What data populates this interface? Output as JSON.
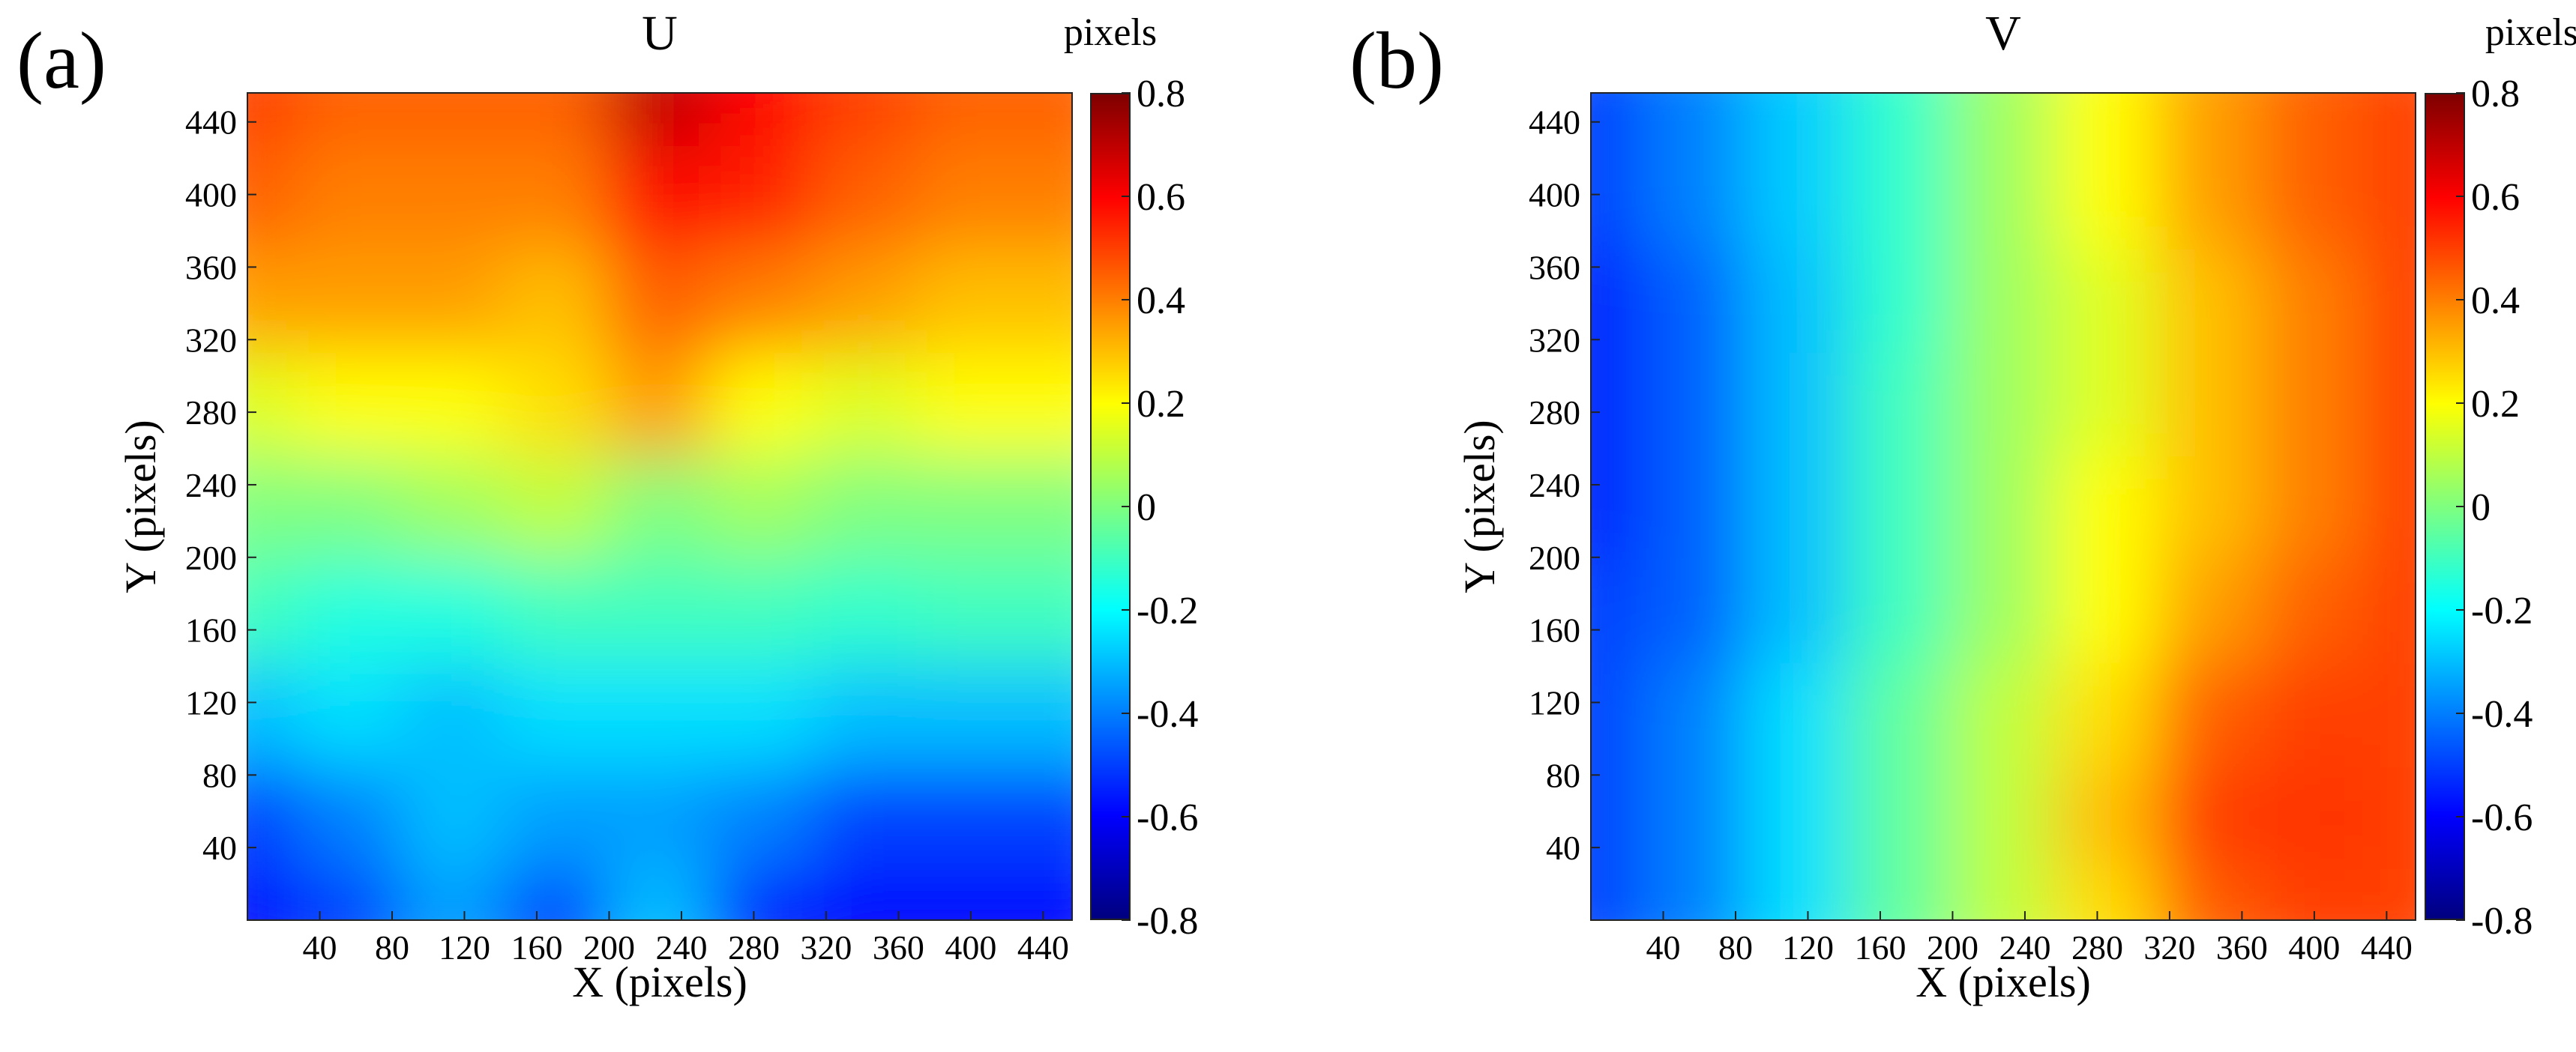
{
  "chart_data": [
    {
      "type": "heatmap",
      "panel_label": "(a)",
      "title": "U",
      "xlabel": "X (pixels)",
      "ylabel": "Y (pixels)",
      "xlim": [
        0,
        456
      ],
      "ylim": [
        0,
        456
      ],
      "xticks": [
        40,
        80,
        120,
        160,
        200,
        240,
        280,
        320,
        360,
        400,
        440
      ],
      "yticks": [
        40,
        80,
        120,
        160,
        200,
        240,
        280,
        320,
        360,
        400,
        440
      ],
      "colorbar": {
        "label": "pixels",
        "range": [
          -0.8,
          0.8
        ],
        "ticks": [
          0.8,
          0.6,
          0.4,
          0.2,
          0,
          -0.2,
          -0.4,
          -0.6,
          -0.8
        ],
        "tick_labels": [
          "0.8",
          "0.6",
          "0.4",
          "0.2",
          "0",
          "-0.2",
          "-0.4",
          "-0.6",
          "-0.8"
        ],
        "colormap": "jet"
      },
      "grid_x": [
        0,
        57,
        114,
        171,
        228,
        285,
        342,
        399,
        456
      ],
      "grid_y": [
        0,
        57,
        114,
        171,
        228,
        285,
        342,
        399,
        456
      ],
      "values": [
        [
          -0.6,
          -0.5,
          -0.35,
          -0.5,
          -0.3,
          -0.55,
          -0.6,
          -0.6,
          -0.6
        ],
        [
          -0.5,
          -0.4,
          -0.3,
          -0.35,
          -0.35,
          -0.4,
          -0.5,
          -0.5,
          -0.5
        ],
        [
          -0.3,
          -0.25,
          -0.3,
          -0.25,
          -0.25,
          -0.25,
          -0.3,
          -0.3,
          -0.3
        ],
        [
          -0.1,
          -0.15,
          -0.15,
          -0.1,
          -0.1,
          -0.1,
          -0.12,
          -0.1,
          -0.1
        ],
        [
          0.0,
          0.0,
          0.05,
          0.1,
          0.0,
          0.05,
          0.0,
          0.0,
          0.0
        ],
        [
          0.15,
          0.2,
          0.2,
          0.25,
          0.35,
          0.2,
          0.15,
          0.2,
          0.2
        ],
        [
          0.35,
          0.35,
          0.35,
          0.3,
          0.45,
          0.4,
          0.35,
          0.3,
          0.3
        ],
        [
          0.45,
          0.4,
          0.4,
          0.4,
          0.6,
          0.55,
          0.45,
          0.4,
          0.4
        ],
        [
          0.5,
          0.45,
          0.45,
          0.45,
          0.7,
          0.6,
          0.5,
          0.45,
          0.45
        ]
      ]
    },
    {
      "type": "heatmap",
      "panel_label": "(b)",
      "title": "V",
      "xlabel": "X (pixels)",
      "ylabel": "Y (pixels)",
      "xlim": [
        0,
        456
      ],
      "ylim": [
        0,
        456
      ],
      "xticks": [
        40,
        80,
        120,
        160,
        200,
        240,
        280,
        320,
        360,
        400,
        440
      ],
      "yticks": [
        40,
        80,
        120,
        160,
        200,
        240,
        280,
        320,
        360,
        400,
        440
      ],
      "colorbar": {
        "label": "pixels",
        "range": [
          -0.8,
          0.8
        ],
        "ticks": [
          0.8,
          0.6,
          0.4,
          0.2,
          0,
          -0.2,
          -0.4,
          -0.6,
          -0.8
        ],
        "tick_labels": [
          "0.8",
          "0.6",
          "0.4",
          "0.2",
          "0",
          "-0.2",
          "-0.4",
          "-0.6",
          "-0.8"
        ],
        "colormap": "jet"
      },
      "grid_x": [
        0,
        57,
        114,
        171,
        228,
        285,
        342,
        399,
        456
      ],
      "grid_y": [
        0,
        57,
        114,
        171,
        228,
        285,
        342,
        399,
        456
      ],
      "values": [
        [
          -0.5,
          -0.4,
          -0.25,
          -0.05,
          0.1,
          0.25,
          0.45,
          0.5,
          0.5
        ],
        [
          -0.5,
          -0.4,
          -0.25,
          -0.05,
          0.1,
          0.3,
          0.5,
          0.52,
          0.5
        ],
        [
          -0.5,
          -0.4,
          -0.25,
          -0.05,
          0.1,
          0.25,
          0.45,
          0.5,
          0.5
        ],
        [
          -0.5,
          -0.45,
          -0.3,
          -0.1,
          0.05,
          0.2,
          0.35,
          0.45,
          0.5
        ],
        [
          -0.55,
          -0.45,
          -0.3,
          -0.1,
          0.05,
          0.2,
          0.3,
          0.4,
          0.5
        ],
        [
          -0.55,
          -0.45,
          -0.3,
          -0.1,
          0.05,
          0.15,
          0.3,
          0.4,
          0.5
        ],
        [
          -0.55,
          -0.45,
          -0.3,
          -0.12,
          0.05,
          0.15,
          0.3,
          0.4,
          0.5
        ],
        [
          -0.5,
          -0.4,
          -0.28,
          -0.12,
          0.05,
          0.2,
          0.35,
          0.45,
          0.5
        ],
        [
          -0.5,
          -0.4,
          -0.28,
          -0.12,
          0.05,
          0.2,
          0.35,
          0.45,
          0.5
        ]
      ]
    }
  ]
}
